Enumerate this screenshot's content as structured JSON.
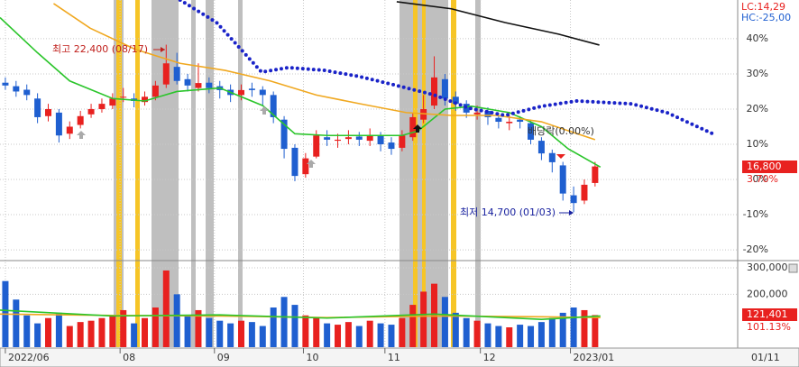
{
  "chart_data": {
    "type": "candlestick",
    "annotations": {
      "high": "최고 22,400 (08/17)",
      "low": "최저 14,700 (01/03)",
      "dividend": "배당락(0.00%)",
      "lc": "LC:14,29",
      "hc": "HC:-25,00",
      "price": "16,800",
      "change": "3.70%",
      "volume": "121,401",
      "volume_ratio": "101.13%",
      "cursor_date": "01/11"
    },
    "xlim": [
      -0.5,
      68.3
    ],
    "xticks": [
      {
        "value": 0,
        "label": "2022/06"
      },
      {
        "value": 10.7,
        "label": "08"
      },
      {
        "value": 19.5,
        "label": "09"
      },
      {
        "value": 27.8,
        "label": "10"
      },
      {
        "value": 35.4,
        "label": "11"
      },
      {
        "value": 44.3,
        "label": "12"
      },
      {
        "value": 52.7,
        "label": "2023/01"
      }
    ],
    "ylim": [
      -22.8,
      51
    ],
    "yticks": [
      {
        "value": 40,
        "label": "40%"
      },
      {
        "value": 30,
        "label": "30%"
      },
      {
        "value": 20,
        "label": "20%"
      },
      {
        "value": 10,
        "label": "10%"
      },
      {
        "value": 0,
        "label": "0%"
      },
      {
        "value": -10,
        "label": "-10%"
      },
      {
        "value": -20,
        "label": "-20%"
      }
    ],
    "grid": true,
    "up_color": "#e8211f",
    "down_color": "#1f5fd0",
    "open": [
      27.5,
      26.5,
      25.5,
      23,
      18,
      19,
      13,
      15.5,
      18.5,
      20,
      21,
      23.5,
      23,
      22,
      23.5,
      27,
      32,
      28.5,
      26,
      27.5,
      26.5,
      25.5,
      24,
      25.8,
      25.5,
      24,
      17,
      9,
      1.5,
      6.5,
      12,
      11,
      11.5,
      12.2,
      11,
      12.5,
      10.5,
      9,
      12,
      17,
      21,
      28.5,
      23.5,
      21.5,
      18.5,
      19.5,
      17.5,
      16,
      17,
      16,
      11,
      7.5,
      4,
      -4.5,
      -6,
      -1
    ],
    "high": [
      29,
      28,
      27,
      24.5,
      21.5,
      20,
      16.5,
      19.5,
      21.5,
      23,
      24.5,
      26,
      24.5,
      25,
      28,
      38.3,
      36,
      30,
      33,
      29,
      28,
      27,
      27,
      27.5,
      26.5,
      25,
      18,
      10,
      7.5,
      14,
      14,
      13,
      14,
      13.5,
      14.5,
      13.5,
      12,
      14,
      19,
      24,
      35,
      30,
      25,
      22.5,
      21,
      20.5,
      19,
      18.5,
      18,
      17,
      12,
      8.5,
      5,
      -2,
      0,
      5
    ],
    "low": [
      25.5,
      23.5,
      22.5,
      16,
      16.5,
      10.5,
      11.5,
      14.5,
      17.5,
      19,
      20,
      22,
      20.5,
      21,
      22.5,
      26,
      27,
      25,
      25,
      24.5,
      23,
      22,
      22.5,
      23.5,
      21,
      16,
      6,
      -0.5,
      0.5,
      6,
      9.5,
      9,
      10,
      9.5,
      9.5,
      8,
      7,
      8,
      11,
      16,
      20,
      21,
      19.5,
      17.5,
      17,
      15.5,
      14.5,
      14,
      14.5,
      10,
      5.5,
      2,
      -6,
      -9.3,
      -7,
      -2
    ],
    "close": [
      26.7,
      25,
      24,
      17.7,
      20,
      12.5,
      15,
      18,
      20,
      21.5,
      23,
      23.5,
      22.3,
      23.5,
      26.7,
      33,
      28,
      26.7,
      27.4,
      26,
      25.4,
      24,
      25.4,
      25.4,
      24,
      17.7,
      8.7,
      1,
      6,
      12.5,
      11.3,
      11.3,
      12,
      11.3,
      12.5,
      10,
      8.7,
      12.5,
      17.7,
      20,
      29,
      23,
      21.5,
      19,
      19,
      17.7,
      16.4,
      16.4,
      16.4,
      11.3,
      7.4,
      4.9,
      -4,
      -6.7,
      -1.5,
      3.7
    ],
    "lines": [
      {
        "color": "#2bc52b",
        "x": [
          -0.5,
          3,
          6,
          10,
          13,
          16,
          20,
          24,
          27,
          30,
          33,
          37,
          38.5,
          41,
          43.5,
          47,
          50,
          52.5,
          55.5
        ],
        "values": [
          46,
          36,
          28,
          23,
          22.3,
          25,
          26,
          21,
          13,
          12.5,
          12.5,
          12.5,
          13.8,
          20,
          20.8,
          19,
          15,
          8.7,
          3.5
        ]
      },
      {
        "color": "#f0a820",
        "x": [
          4.5,
          7.9,
          12.1,
          16.3,
          20.5,
          24.7,
          29,
          33.1,
          37.4,
          41.6,
          45.8,
          50,
          55
        ],
        "values": [
          50,
          43,
          37,
          33,
          31,
          28,
          24,
          21.5,
          19,
          18.2,
          18.2,
          16.4,
          11.3
        ]
      },
      {
        "color": "#111111",
        "x": [
          36.5,
          41.6,
          46.6,
          51.6,
          55.4
        ],
        "values": [
          50.5,
          48.5,
          44.6,
          41.3,
          38.2
        ]
      },
      {
        "color": "#1a23c8",
        "style": "dotted",
        "x": [
          16.3,
          19.7,
          23.9,
          26.4,
          29.8,
          33.1,
          36.5,
          39.9,
          43.2,
          46.6,
          50,
          53.3,
          58.4,
          61.7,
          65.9
        ],
        "values": [
          51,
          44.6,
          30.5,
          31.8,
          31,
          29.2,
          26.7,
          24.1,
          20.3,
          18.2,
          20.8,
          22.3,
          21.5,
          19,
          13.1
        ]
      }
    ],
    "volume": {
      "values": [
        250000,
        180000,
        120000,
        90000,
        110000,
        130000,
        80000,
        95000,
        100000,
        110000,
        120000,
        140000,
        90000,
        110000,
        150000,
        290000,
        200000,
        120000,
        140000,
        110000,
        100000,
        90000,
        100000,
        95000,
        80000,
        150000,
        190000,
        160000,
        120000,
        110000,
        90000,
        85000,
        95000,
        80000,
        100000,
        90000,
        85000,
        110000,
        160000,
        210000,
        240000,
        190000,
        130000,
        110000,
        100000,
        90000,
        80000,
        75000,
        85000,
        80000,
        95000,
        110000,
        130000,
        150000,
        140000,
        121401
      ],
      "ylim": [
        0,
        324000
      ],
      "yticks": [
        {
          "value": 300000,
          "label": "300,000"
        },
        {
          "value": 200000,
          "label": "200,000"
        }
      ],
      "lines": [
        {
          "color": "#f0a820",
          "x": [
            -0.5,
            10,
            20,
            30,
            40,
            50,
            55.5
          ],
          "values": [
            125000,
            120000,
            118000,
            112000,
            118000,
            115000,
            112000
          ]
        },
        {
          "color": "#2bc52b",
          "x": [
            -0.5,
            10,
            20,
            30,
            40,
            50,
            55.5
          ],
          "values": [
            140000,
            118000,
            122000,
            110000,
            125000,
            105000,
            118000
          ]
        }
      ]
    }
  }
}
